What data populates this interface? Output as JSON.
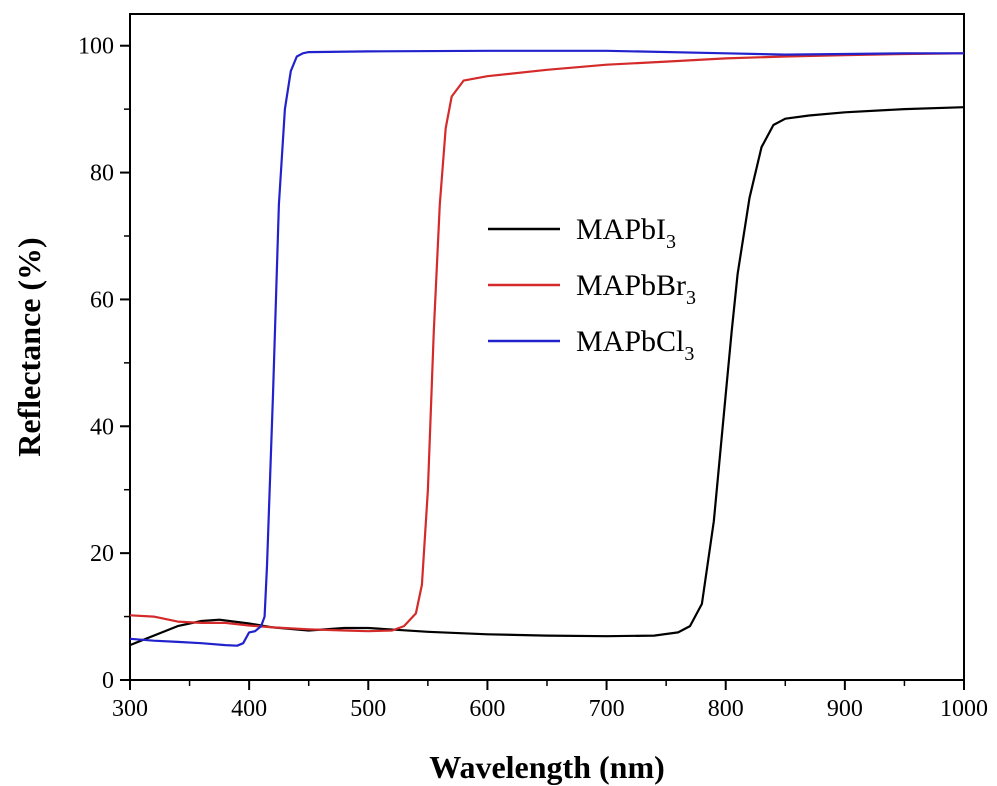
{
  "chart_data": {
    "type": "line",
    "title": "",
    "xlabel": "Wavelength (nm)",
    "ylabel": "Reflectance (%)",
    "xlim": [
      300,
      1000
    ],
    "ylim": [
      0,
      105
    ],
    "x_ticks": [
      300,
      400,
      500,
      600,
      700,
      800,
      900,
      1000
    ],
    "y_ticks": [
      0,
      20,
      40,
      60,
      80,
      100
    ],
    "grid": false,
    "legend_position": "center",
    "series": [
      {
        "name": "MAPbI",
        "name_subscript": "3",
        "color": "#000000",
        "x": [
          300,
          320,
          340,
          360,
          375,
          400,
          420,
          450,
          480,
          500,
          550,
          600,
          650,
          700,
          740,
          760,
          770,
          780,
          790,
          800,
          805,
          810,
          820,
          830,
          840,
          850,
          870,
          900,
          950,
          1000
        ],
        "y": [
          5.5,
          7,
          8.5,
          9.3,
          9.5,
          8.9,
          8.3,
          7.8,
          8.2,
          8.2,
          7.6,
          7.2,
          7,
          6.9,
          7,
          7.5,
          8.5,
          12,
          25,
          45,
          55,
          64,
          76,
          84,
          87.5,
          88.5,
          89,
          89.5,
          90,
          90.3
        ]
      },
      {
        "name": "MAPbBr",
        "name_subscript": "3",
        "color": "#d42a2a",
        "x": [
          300,
          320,
          340,
          360,
          380,
          400,
          420,
          450,
          480,
          500,
          520,
          530,
          540,
          545,
          550,
          555,
          560,
          565,
          570,
          580,
          600,
          650,
          700,
          750,
          800,
          850,
          900,
          950,
          1000
        ],
        "y": [
          10.2,
          10,
          9.2,
          9,
          9,
          8.6,
          8.3,
          8,
          7.8,
          7.7,
          7.8,
          8.5,
          10.5,
          15,
          30,
          55,
          75,
          87,
          92,
          94.5,
          95.2,
          96.2,
          97,
          97.5,
          98,
          98.3,
          98.5,
          98.7,
          98.8
        ]
      },
      {
        "name": "MAPbCl",
        "name_subscript": "3",
        "color": "#2222cc",
        "x": [
          300,
          320,
          340,
          360,
          380,
          390,
          395,
          400,
          405,
          410,
          413,
          415,
          420,
          425,
          430,
          435,
          440,
          445,
          450,
          500,
          600,
          700,
          800,
          850,
          900,
          950,
          1000
        ],
        "y": [
          6.5,
          6.2,
          6,
          5.8,
          5.5,
          5.4,
          5.8,
          7.5,
          7.7,
          8.5,
          10,
          18,
          45,
          75,
          90,
          96,
          98.3,
          98.8,
          99,
          99.1,
          99.2,
          99.2,
          98.8,
          98.6,
          98.7,
          98.8,
          98.8
        ]
      }
    ]
  }
}
